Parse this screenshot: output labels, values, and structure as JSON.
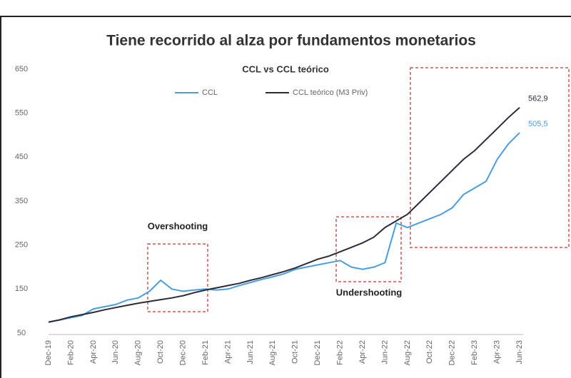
{
  "chart_data": {
    "type": "line",
    "title": "Tiene recorrido al alza por fundamentos monetarios",
    "subtitle": "CCL vs CCL teórico",
    "categories": [
      "Dec-19",
      null,
      "Feb-20",
      null,
      "Apr-20",
      null,
      "Jun-20",
      null,
      "Aug-20",
      null,
      "Oct-20",
      null,
      "Dec-20",
      null,
      "Feb-21",
      null,
      "Apr-21",
      null,
      "Jun-21",
      null,
      "Aug-21",
      null,
      "Oct-21",
      null,
      "Dec-21",
      null,
      "Feb-22",
      null,
      "Apr-22",
      null,
      "Jun-22",
      null,
      "Aug-22",
      null,
      "Oct-22",
      null,
      "Dec-22",
      null,
      "Feb-23",
      null,
      "Apr-23",
      null,
      "Jun-23"
    ],
    "series": [
      {
        "name": "CCL",
        "color": "#4a9ee0",
        "values": [
          75,
          80,
          85,
          90,
          105,
          110,
          115,
          125,
          130,
          145,
          170,
          150,
          145,
          148,
          150,
          148,
          150,
          158,
          165,
          172,
          178,
          185,
          195,
          200,
          205,
          210,
          215,
          200,
          195,
          200,
          210,
          300,
          290,
          300,
          310,
          320,
          335,
          365,
          380,
          395,
          445,
          480,
          505.5
        ],
        "value_labels": [
          null,
          null,
          null,
          null,
          null,
          null,
          null,
          null,
          null,
          null,
          null,
          null,
          null,
          null,
          null,
          null,
          null,
          null,
          null,
          null,
          null,
          null,
          null,
          null,
          null,
          null,
          null,
          null,
          null,
          null,
          null,
          null,
          null,
          null,
          null,
          null,
          null,
          null,
          null,
          null,
          null,
          null,
          "505,5"
        ]
      },
      {
        "name": "CCL teórico (M3 Priv)",
        "color": "#2b2b3a",
        "values": [
          75,
          80,
          87,
          92,
          97,
          103,
          108,
          113,
          118,
          122,
          126,
          130,
          135,
          142,
          148,
          153,
          158,
          163,
          170,
          176,
          183,
          190,
          198,
          208,
          218,
          225,
          235,
          245,
          255,
          268,
          290,
          305,
          320,
          345,
          370,
          395,
          420,
          445,
          465,
          490,
          515,
          540,
          562.9
        ],
        "value_labels": [
          null,
          null,
          null,
          null,
          null,
          null,
          null,
          null,
          null,
          null,
          null,
          null,
          null,
          null,
          null,
          null,
          null,
          null,
          null,
          null,
          null,
          null,
          null,
          null,
          null,
          null,
          null,
          null,
          null,
          null,
          null,
          null,
          null,
          null,
          null,
          null,
          null,
          null,
          null,
          null,
          null,
          null,
          "562,9"
        ]
      }
    ],
    "ylim": [
      50,
      650
    ],
    "yticks": [
      50,
      150,
      250,
      350,
      450,
      550,
      650
    ],
    "annotations": [
      "Overshooting",
      "Undershooting"
    ]
  }
}
